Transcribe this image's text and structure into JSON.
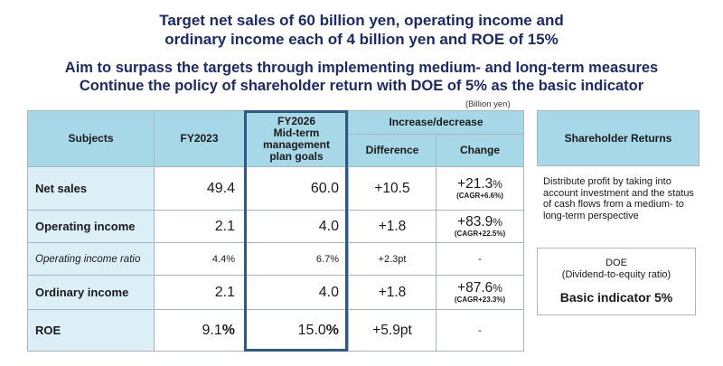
{
  "headline": {
    "line1": "Target net sales of 60 billion yen, operating income and",
    "line2": "ordinary income each of 4 billion yen and ROE of 15%",
    "line3": "Aim to surpass the targets through implementing medium- and long-term measures",
    "line4": "Continue the policy of shareholder return with DOE of 5% as the basic indicator"
  },
  "unit": "(Billion yen)",
  "table": {
    "headers": {
      "subjects": "Subjects",
      "fy2023": "FY2023",
      "fy2026_line1": "FY2026",
      "fy2026_line2": "Mid-term",
      "fy2026_line3": "management",
      "fy2026_line4": "plan goals",
      "increase": "Increase/decrease",
      "difference": "Difference",
      "change": "Change"
    },
    "rows": [
      {
        "subject": "Net sales",
        "fy2023": "49.4",
        "fy2026": "60.0",
        "difference": "+10.5",
        "change_main": "+21.3",
        "change_pct": "%",
        "change_sub": "(CAGR+6.6%)"
      },
      {
        "subject": "Operating income",
        "fy2023": "2.1",
        "fy2026": "4.0",
        "difference": "+1.8",
        "change_main": "+83.9",
        "change_pct": "%",
        "change_sub": "(CAGR+22.5%)"
      },
      {
        "subject": "Operating income ratio",
        "fy2023": "4.4%",
        "fy2026": "6.7%",
        "difference": "+2.3pt",
        "change_main": "-"
      },
      {
        "subject": "Ordinary income",
        "fy2023": "2.1",
        "fy2026": "4.0",
        "difference": "+1.8",
        "change_main": "+87.6",
        "change_pct": "%",
        "change_sub": "(CAGR+23.3%)"
      },
      {
        "subject": "ROE",
        "fy2023": "9.1",
        "fy2023_pct": "%",
        "fy2026": "15.0",
        "fy2026_pct": "%",
        "difference": "+5.9pt",
        "change_main": "-"
      }
    ]
  },
  "shareholder": {
    "header": "Shareholder Returns",
    "text": "Distribute profit by taking into account investment and the status of cash flows from a medium- to long-term perspective",
    "doe_title": "DOE",
    "doe_sub": "(Dividend-to-equity ratio)",
    "doe_basic": "Basic indicator 5%"
  }
}
